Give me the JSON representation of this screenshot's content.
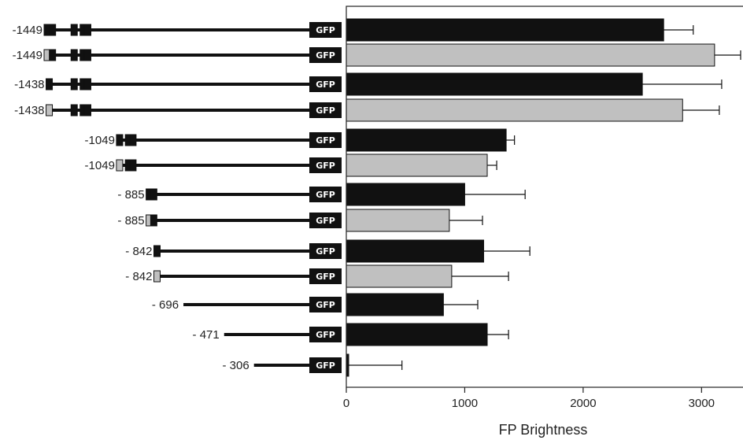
{
  "chart_data": {
    "type": "bar",
    "orientation": "horizontal",
    "xlabel": "FP Brightness",
    "xlim": [
      0,
      3350
    ],
    "xticks": [
      0,
      1000,
      2000,
      3000
    ],
    "grid": false,
    "gfp_label": "GFP",
    "rows": [
      {
        "label": "-1449",
        "value": 2680,
        "error": 250,
        "color": "#111111",
        "exon_fill": "#111111",
        "exons": [
          -1449,
          -1420,
          -1300,
          -1250,
          -1225
        ]
      },
      {
        "label": "-1449",
        "value": 3110,
        "error": 220,
        "color": "#c0c0c0",
        "exon_fill": "#c0c0c0",
        "exons": [
          -1449,
          -1420,
          -1300,
          -1250,
          -1225
        ]
      },
      {
        "label": "-1438",
        "value": 2500,
        "error": 670,
        "color": "#111111",
        "exon_fill": "#111111",
        "exons": [
          -1438,
          -1300,
          -1250,
          -1225
        ]
      },
      {
        "label": "-1438",
        "value": 2840,
        "error": 310,
        "color": "#c0c0c0",
        "exon_fill": "#c0c0c0",
        "exons": [
          -1438,
          -1300,
          -1250,
          -1225
        ]
      },
      {
        "label": "-1049",
        "value": 1350,
        "error": 70,
        "color": "#111111",
        "exon_fill": "#111111",
        "exons": [
          -1049,
          -1000,
          -975
        ]
      },
      {
        "label": "-1049",
        "value": 1190,
        "error": 80,
        "color": "#c0c0c0",
        "exon_fill": "#c0c0c0",
        "exons": [
          -1049,
          -1000,
          -975
        ]
      },
      {
        "label": "- 885",
        "value": 1000,
        "error": 510,
        "color": "#111111",
        "exon_fill": "#111111",
        "exons": [
          -885,
          -860
        ]
      },
      {
        "label": "- 885",
        "value": 870,
        "error": 280,
        "color": "#c0c0c0",
        "exon_fill": "#c0c0c0",
        "exons": [
          -885,
          -860
        ]
      },
      {
        "label": "- 842",
        "value": 1160,
        "error": 390,
        "color": "#111111",
        "exon_fill": "#111111",
        "exons": [
          -842
        ]
      },
      {
        "label": "- 842",
        "value": 890,
        "error": 480,
        "color": "#c0c0c0",
        "exon_fill": "#c0c0c0",
        "exons": [
          -842
        ]
      },
      {
        "label": "- 696",
        "value": 820,
        "error": 290,
        "color": "#111111",
        "exon_fill": "#111111",
        "exons": []
      },
      {
        "label": "- 471",
        "value": 1190,
        "error": 180,
        "color": "#111111",
        "exon_fill": "#111111",
        "exons": []
      },
      {
        "label": "- 306",
        "value": 20,
        "error": 450,
        "color": "#111111",
        "exon_fill": "#111111",
        "exons": []
      }
    ]
  }
}
